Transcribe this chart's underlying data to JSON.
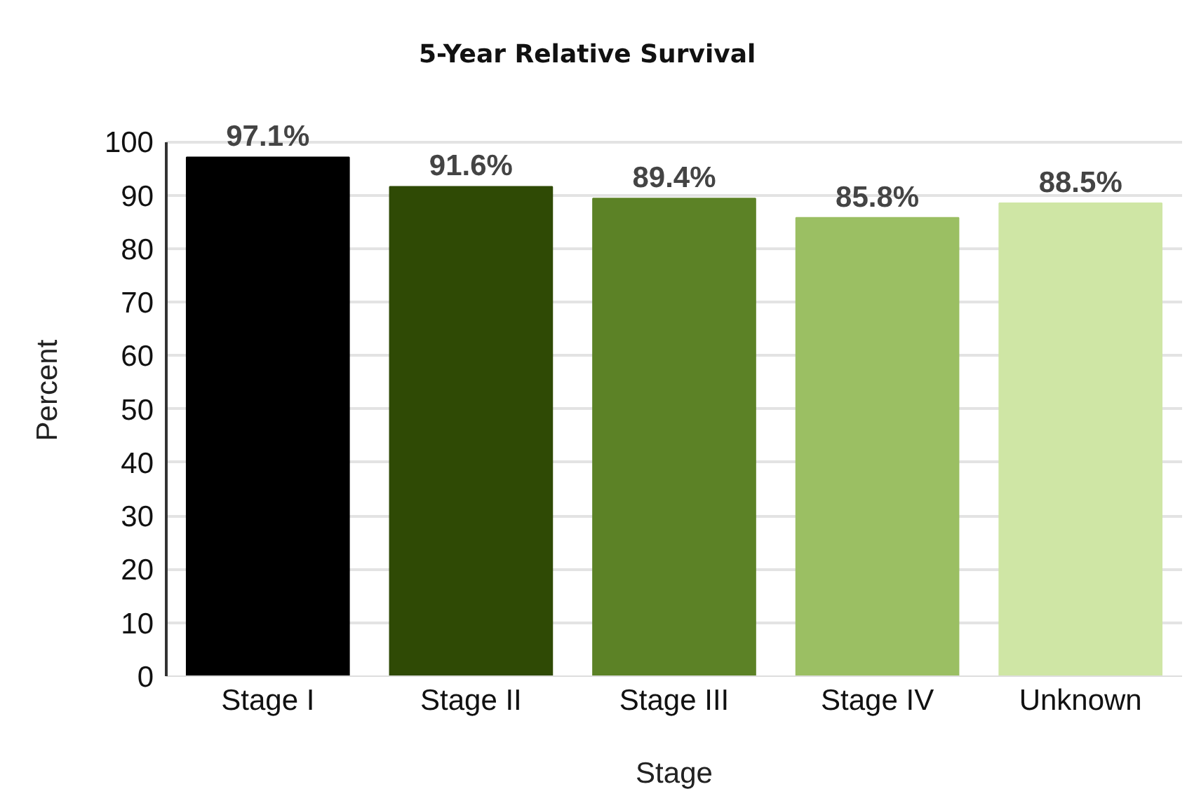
{
  "chart_data": {
    "type": "bar",
    "title": "5-Year Relative Survival",
    "xlabel": "Stage",
    "ylabel": "Percent",
    "categories": [
      "Stage I",
      "Stage II",
      "Stage III",
      "Stage IV",
      "Unknown"
    ],
    "values": [
      97.1,
      91.6,
      89.4,
      85.8,
      88.5
    ],
    "colors": [
      "#000000",
      "#2f4a05",
      "#5c8226",
      "#9bbf63",
      "#cfe6a5"
    ],
    "value_labels": [
      "97.1%",
      "91.6%",
      "89.4%",
      "85.8%",
      "88.5%"
    ],
    "ylim": [
      0,
      100
    ],
    "yticks": [
      0,
      10,
      20,
      30,
      40,
      50,
      60,
      70,
      80,
      90,
      100
    ],
    "grid": "y"
  }
}
